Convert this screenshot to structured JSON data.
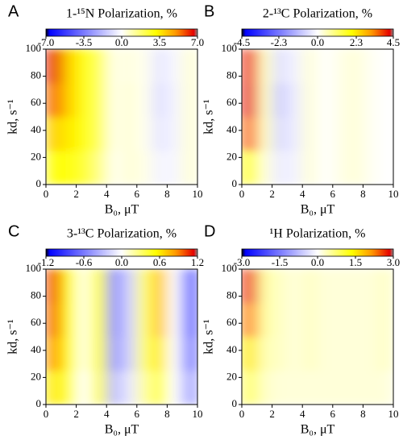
{
  "chart_data": [
    {
      "type": "heatmap",
      "panel_label": "A",
      "title": "1-¹⁵N Polarization, %",
      "xlabel": "B₀, μT",
      "ylabel": "kd, s⁻¹",
      "x": [
        0.5,
        1.5,
        2.5,
        3.5,
        4.5,
        5.5,
        6.5,
        7.5,
        8.5,
        9.5
      ],
      "y": [
        12.5,
        37.5,
        62.5,
        87.5
      ],
      "z": [
        [
          3,
          3,
          2.5,
          1.5,
          0.2,
          0.5,
          0.3,
          -0.3,
          -0.2,
          0.5
        ],
        [
          4,
          3.5,
          3,
          2,
          0.3,
          0.5,
          0.2,
          -0.6,
          -0.3,
          0.5
        ],
        [
          5.5,
          4,
          3,
          2,
          0.3,
          0.5,
          0.2,
          -0.8,
          -0.3,
          0.5
        ],
        [
          6.5,
          4,
          3,
          2,
          0.3,
          0.4,
          0.2,
          -0.6,
          -0.2,
          0.5
        ]
      ],
      "xlim": [
        0,
        10
      ],
      "ylim": [
        0,
        100
      ],
      "xticks": [
        0,
        2,
        4,
        6,
        8,
        10
      ],
      "yticks": [
        0,
        20,
        40,
        60,
        80,
        100
      ],
      "zlim": [
        -7,
        7
      ],
      "zticks": [
        {
          "value": -7,
          "label": "-7.0"
        },
        {
          "value": -3.5,
          "label": "-3.5"
        },
        {
          "value": 0,
          "label": "0.0"
        },
        {
          "value": 3.5,
          "label": "3.5"
        },
        {
          "value": 7,
          "label": "7.0"
        }
      ]
    },
    {
      "type": "heatmap",
      "panel_label": "B",
      "title": "2-¹³C Polarization, %",
      "xlabel": "B₀, μT",
      "ylabel": "kd, s⁻¹",
      "x": [
        0.5,
        1.5,
        2.5,
        3.5,
        4.5,
        5.5,
        6.5,
        7.5,
        8.5,
        9.5
      ],
      "y": [
        12.5,
        37.5,
        62.5,
        87.5
      ],
      "z": [
        [
          2,
          0.3,
          -0.3,
          -0.2,
          0.3,
          0,
          0.2,
          0.3,
          0.1,
          0
        ],
        [
          3.5,
          0.5,
          -0.6,
          -0.3,
          0.3,
          0,
          0.2,
          0.3,
          0.1,
          0
        ],
        [
          4.2,
          0.5,
          -0.8,
          -0.3,
          0.3,
          0,
          0.2,
          0.3,
          0.1,
          0
        ],
        [
          4,
          0.5,
          -0.5,
          -0.2,
          0.3,
          0,
          0.2,
          0.3,
          0.1,
          0
        ]
      ],
      "xlim": [
        0,
        10
      ],
      "ylim": [
        0,
        100
      ],
      "xticks": [
        0,
        2,
        4,
        6,
        8,
        10
      ],
      "yticks": [
        0,
        20,
        40,
        60,
        80,
        100
      ],
      "zlim": [
        -4.5,
        4.5
      ],
      "zticks": [
        {
          "value": -4.5,
          "label": "-4.5"
        },
        {
          "value": -2.3,
          "label": "-2.3"
        },
        {
          "value": 0,
          "label": "0.0"
        },
        {
          "value": 2.3,
          "label": "2.3"
        },
        {
          "value": 4.5,
          "label": "4.5"
        }
      ]
    },
    {
      "type": "heatmap",
      "panel_label": "C",
      "title": "3-¹³C Polarization, %",
      "xlabel": "B₀, μT",
      "ylabel": "kd, s⁻¹",
      "x": [
        0.5,
        1.5,
        2.5,
        3.5,
        4.5,
        5.5,
        6.5,
        7.5,
        8.5,
        9.5
      ],
      "y": [
        12.5,
        37.5,
        62.5,
        87.5
      ],
      "z": [
        [
          0.6,
          0.4,
          0,
          0.4,
          -0.3,
          -0.1,
          0.2,
          0.4,
          0,
          -0.4
        ],
        [
          0.85,
          0.5,
          0.05,
          0.5,
          -0.45,
          -0.2,
          0.3,
          0.6,
          0,
          -0.6
        ],
        [
          0.95,
          0.5,
          0.05,
          0.5,
          -0.5,
          -0.2,
          0.3,
          0.7,
          0,
          -0.7
        ],
        [
          1.0,
          0.5,
          0.05,
          0.5,
          -0.5,
          -0.2,
          0.3,
          0.7,
          0,
          -0.7
        ]
      ],
      "xlim": [
        0,
        10
      ],
      "ylim": [
        0,
        100
      ],
      "xticks": [
        0,
        2,
        4,
        6,
        8,
        10
      ],
      "yticks": [
        0,
        20,
        40,
        60,
        80,
        100
      ],
      "zlim": [
        -1.2,
        1.2
      ],
      "zticks": [
        {
          "value": -1.2,
          "label": "-1.2"
        },
        {
          "value": -0.6,
          "label": "-0.6"
        },
        {
          "value": 0,
          "label": "0.0"
        },
        {
          "value": 0.6,
          "label": "0.6"
        },
        {
          "value": 1.2,
          "label": "1.2"
        }
      ]
    },
    {
      "type": "heatmap",
      "panel_label": "D",
      "title": "¹H Polarization, %",
      "xlabel": "B₀, μT",
      "ylabel": "kd, s⁻¹",
      "x": [
        0.5,
        1.5,
        2.5,
        3.5,
        4.5,
        5.5,
        6.5,
        7.5,
        8.5,
        9.5
      ],
      "y": [
        12.5,
        37.5,
        62.5,
        87.5
      ],
      "z": [
        [
          0.8,
          0.3,
          0.2,
          0.2,
          0.2,
          0.2,
          0.2,
          0.2,
          0.2,
          0.2
        ],
        [
          1.5,
          0.4,
          0.3,
          0.2,
          0.3,
          0.2,
          0.2,
          0.2,
          0.2,
          0.3
        ],
        [
          2.2,
          0.5,
          0.3,
          0.2,
          0.3,
          0.2,
          0.2,
          0.2,
          0.2,
          0.3
        ],
        [
          2.6,
          0.5,
          0.3,
          0.2,
          0.3,
          0.2,
          0.2,
          0.2,
          0.2,
          0.3
        ]
      ],
      "xlim": [
        0,
        10
      ],
      "ylim": [
        0,
        100
      ],
      "xticks": [
        0,
        2,
        4,
        6,
        8,
        10
      ],
      "yticks": [
        0,
        20,
        40,
        60,
        80,
        100
      ],
      "zlim": [
        -3,
        3
      ],
      "zticks": [
        {
          "value": -3,
          "label": "-3.0"
        },
        {
          "value": -1.5,
          "label": "-1.5"
        },
        {
          "value": 0,
          "label": "0.0"
        },
        {
          "value": 1.5,
          "label": "1.5"
        },
        {
          "value": 3,
          "label": "3.0"
        }
      ]
    }
  ]
}
